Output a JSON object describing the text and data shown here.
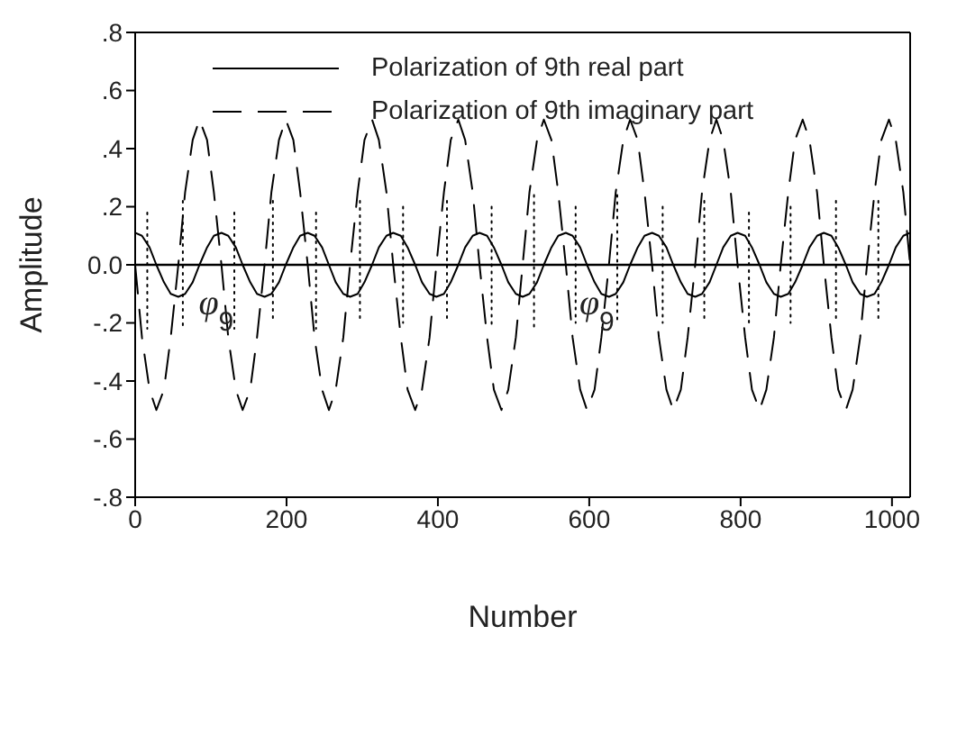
{
  "chart_data": {
    "type": "line",
    "xlabel": "Number",
    "ylabel": "Amplitude",
    "xlim": [
      0,
      1024
    ],
    "xticks": [
      0,
      200,
      400,
      600,
      800,
      1000
    ],
    "ylim": [
      -0.8,
      0.8
    ],
    "yticks": [
      {
        "value": -0.8,
        "label": "-.8"
      },
      {
        "value": -0.6,
        "label": "-.6"
      },
      {
        "value": -0.4,
        "label": "-.4"
      },
      {
        "value": -0.2,
        "label": "-.2"
      },
      {
        "value": 0,
        "label": "0.0"
      },
      {
        "value": 0.2,
        "label": ".2"
      },
      {
        "value": 0.4,
        "label": ".4"
      },
      {
        "value": 0.6,
        "label": ".6"
      },
      {
        "value": 0.8,
        "label": ".8"
      }
    ],
    "legend": "top",
    "marker": "none",
    "ref_lines": [
      {
        "axis": "y",
        "value": 0,
        "color": "#000000",
        "line_style": "solid"
      }
    ],
    "annotations": [
      {
        "text": "φ$_{9}$",
        "x": 107,
        "y": -0.12
      },
      {
        "text": "φ$_{9}$",
        "x": 610,
        "y": -0.12
      }
    ],
    "x": [
      0,
      9,
      19,
      28,
      38,
      47,
      57,
      66,
      76,
      85,
      95,
      104,
      114,
      123,
      133,
      142,
      152,
      161,
      171,
      180,
      190,
      199,
      209,
      218,
      228,
      237,
      247,
      256,
      265,
      275,
      284,
      294,
      303,
      313,
      322,
      332,
      341,
      351,
      360,
      370,
      379,
      389,
      398,
      408,
      417,
      427,
      436,
      446,
      455,
      465,
      474,
      484,
      493,
      503,
      512,
      521,
      531,
      540,
      550,
      559,
      569,
      578,
      588,
      597,
      607,
      616,
      626,
      635,
      645,
      654,
      664,
      673,
      683,
      692,
      702,
      711,
      721,
      730,
      740,
      749,
      759,
      768,
      777,
      787,
      796,
      806,
      815,
      825,
      834,
      844,
      853,
      863,
      872,
      882,
      891,
      901,
      910,
      920,
      929,
      939,
      948,
      958,
      967,
      977,
      986,
      996,
      1005,
      1015,
      1024
    ],
    "series": [
      {
        "name": "Polarization of 9th real part",
        "color": "#000000",
        "line_style": "solid",
        "values": [
          0.11,
          0.1,
          0.06,
          0,
          -0.06,
          -0.1,
          -0.11,
          -0.1,
          -0.06,
          0,
          0.06,
          0.1,
          0.11,
          0.1,
          0.06,
          0,
          -0.06,
          -0.1,
          -0.11,
          -0.1,
          -0.06,
          0,
          0.06,
          0.1,
          0.11,
          0.1,
          0.06,
          0,
          -0.06,
          -0.1,
          -0.11,
          -0.1,
          -0.06,
          0,
          0.06,
          0.1,
          0.11,
          0.1,
          0.06,
          0,
          -0.06,
          -0.1,
          -0.11,
          -0.1,
          -0.06,
          0,
          0.06,
          0.1,
          0.11,
          0.1,
          0.06,
          0,
          -0.06,
          -0.1,
          -0.11,
          -0.1,
          -0.06,
          0,
          0.06,
          0.1,
          0.11,
          0.1,
          0.06,
          0,
          -0.06,
          -0.1,
          -0.11,
          -0.1,
          -0.06,
          0,
          0.06,
          0.1,
          0.11,
          0.1,
          0.06,
          0,
          -0.06,
          -0.1,
          -0.11,
          -0.1,
          -0.06,
          0,
          0.06,
          0.1,
          0.11,
          0.1,
          0.06,
          0,
          -0.06,
          -0.1,
          -0.11,
          -0.1,
          -0.06,
          0,
          0.06,
          0.1,
          0.11,
          0.1,
          0.06,
          0,
          -0.06,
          -0.1,
          -0.11,
          -0.1,
          -0.06,
          0,
          0.06,
          0.1,
          0.11
        ]
      },
      {
        "name": "Polarization of 9th imaginary part",
        "color": "#000000",
        "line_style": "dashed",
        "values": [
          0,
          -0.25,
          -0.43,
          -0.5,
          -0.43,
          -0.25,
          0,
          0.25,
          0.43,
          0.5,
          0.43,
          0.25,
          0,
          -0.25,
          -0.43,
          -0.5,
          -0.43,
          -0.25,
          0,
          0.25,
          0.43,
          0.5,
          0.43,
          0.25,
          0,
          -0.25,
          -0.43,
          -0.5,
          -0.43,
          -0.25,
          0,
          0.25,
          0.43,
          0.5,
          0.43,
          0.25,
          0,
          -0.25,
          -0.43,
          -0.5,
          -0.43,
          -0.25,
          0,
          0.25,
          0.43,
          0.5,
          0.43,
          0.25,
          0,
          -0.25,
          -0.43,
          -0.5,
          -0.43,
          -0.25,
          0,
          0.25,
          0.43,
          0.5,
          0.43,
          0.25,
          0,
          -0.25,
          -0.43,
          -0.5,
          -0.43,
          -0.25,
          0,
          0.25,
          0.43,
          0.5,
          0.43,
          0.25,
          0,
          -0.25,
          -0.43,
          -0.5,
          -0.43,
          -0.25,
          0,
          0.25,
          0.43,
          0.5,
          0.43,
          0.25,
          0,
          -0.25,
          -0.43,
          -0.5,
          -0.43,
          -0.25,
          0,
          0.25,
          0.43,
          0.5,
          0.43,
          0.25,
          0,
          -0.25,
          -0.43,
          -0.5,
          -0.43,
          -0.25,
          0,
          0.25,
          0.43,
          0.5,
          0.43,
          0.25,
          0
        ]
      },
      {
        "color": "#000000",
        "line_style": "dotted",
        "x": [
          16,
          16
        ],
        "values": [
          0.18,
          -0.22
        ]
      },
      {
        "color": "#000000",
        "line_style": "dotted",
        "x": [
          63,
          63
        ],
        "values": [
          0.22,
          -0.22
        ]
      },
      {
        "color": "#000000",
        "line_style": "dotted",
        "x": [
          131,
          131
        ],
        "values": [
          0.18,
          -0.22
        ]
      },
      {
        "color": "#000000",
        "line_style": "dotted",
        "x": [
          182,
          182
        ],
        "values": [
          0.22,
          -0.2
        ]
      },
      {
        "color": "#000000",
        "line_style": "dotted",
        "x": [
          239,
          239
        ],
        "values": [
          0.18,
          -0.22
        ]
      },
      {
        "color": "#000000",
        "line_style": "dotted",
        "x": [
          297,
          297
        ],
        "values": [
          0.22,
          -0.2
        ]
      },
      {
        "color": "#000000",
        "line_style": "dotted",
        "x": [
          354,
          354
        ],
        "values": [
          0.2,
          -0.2
        ]
      },
      {
        "color": "#000000",
        "line_style": "dotted",
        "x": [
          412,
          412
        ],
        "values": [
          0.22,
          -0.2
        ]
      },
      {
        "color": "#000000",
        "line_style": "dotted",
        "x": [
          471,
          471
        ],
        "values": [
          0.2,
          -0.22
        ]
      },
      {
        "color": "#000000",
        "line_style": "dotted",
        "x": [
          527,
          527
        ],
        "values": [
          0.24,
          -0.22
        ]
      },
      {
        "color": "#000000",
        "line_style": "dotted",
        "x": [
          582,
          582
        ],
        "values": [
          0.2,
          -0.2
        ]
      },
      {
        "color": "#000000",
        "line_style": "dotted",
        "x": [
          637,
          637
        ],
        "values": [
          0.24,
          -0.2
        ]
      },
      {
        "color": "#000000",
        "line_style": "dotted",
        "x": [
          697,
          697
        ],
        "values": [
          0.2,
          -0.2
        ]
      },
      {
        "color": "#000000",
        "line_style": "dotted",
        "x": [
          752,
          752
        ],
        "values": [
          0.22,
          -0.2
        ]
      },
      {
        "color": "#000000",
        "line_style": "dotted",
        "x": [
          811,
          811
        ],
        "values": [
          0.18,
          -0.2
        ]
      },
      {
        "color": "#000000",
        "line_style": "dotted",
        "x": [
          866,
          866
        ],
        "values": [
          0.2,
          -0.2
        ]
      },
      {
        "color": "#000000",
        "line_style": "dotted",
        "x": [
          926,
          926
        ],
        "values": [
          0.22,
          -0.2
        ]
      },
      {
        "color": "#000000",
        "line_style": "dotted",
        "x": [
          982,
          982
        ],
        "values": [
          0.22,
          -0.2
        ]
      }
    ]
  }
}
